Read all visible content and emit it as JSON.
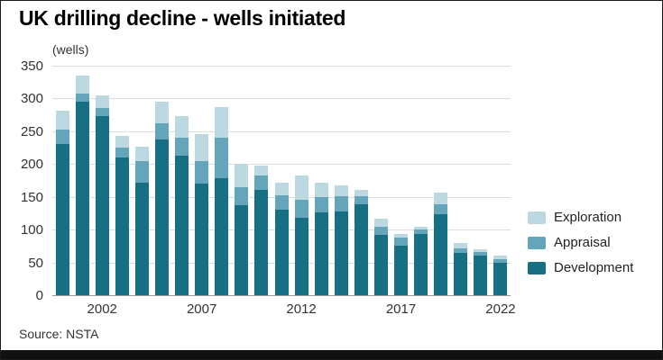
{
  "title": "UK drilling decline - wells initiated",
  "axis_unit_label": "(wells)",
  "source": "Source: NSTA",
  "colors": {
    "development": "#166f82",
    "appraisal": "#64a5ba",
    "exploration": "#bcd8e1"
  },
  "chart_data": {
    "type": "bar",
    "stacked": true,
    "title": "UK drilling decline - wells initiated",
    "xlabel": "",
    "ylabel": "(wells)",
    "ylim": [
      0,
      350
    ],
    "yticks": [
      0,
      50,
      100,
      150,
      200,
      250,
      300,
      350
    ],
    "xticks": [
      2002,
      2007,
      2012,
      2017,
      2022
    ],
    "grid": true,
    "legend": [
      "Exploration",
      "Appraisal",
      "Development"
    ],
    "legend_position": "right",
    "x": [
      2000,
      2001,
      2002,
      2003,
      2004,
      2005,
      2006,
      2007,
      2008,
      2009,
      2010,
      2011,
      2012,
      2013,
      2014,
      2015,
      2016,
      2017,
      2018,
      2019,
      2020,
      2021,
      2022
    ],
    "series": [
      {
        "name": "Development",
        "values": [
          230,
          295,
          273,
          210,
          172,
          237,
          213,
          170,
          178,
          137,
          160,
          130,
          118,
          126,
          128,
          138,
          92,
          75,
          94,
          123,
          65,
          60,
          50
        ]
      },
      {
        "name": "Appraisal",
        "values": [
          22,
          12,
          12,
          15,
          32,
          25,
          27,
          35,
          62,
          28,
          22,
          22,
          28,
          24,
          23,
          13,
          13,
          13,
          6,
          15,
          7,
          6,
          5
        ]
      },
      {
        "name": "Exploration",
        "values": [
          30,
          28,
          20,
          18,
          22,
          33,
          33,
          41,
          47,
          35,
          16,
          20,
          37,
          22,
          17,
          9,
          12,
          6,
          4,
          18,
          7,
          4,
          5
        ]
      }
    ]
  }
}
